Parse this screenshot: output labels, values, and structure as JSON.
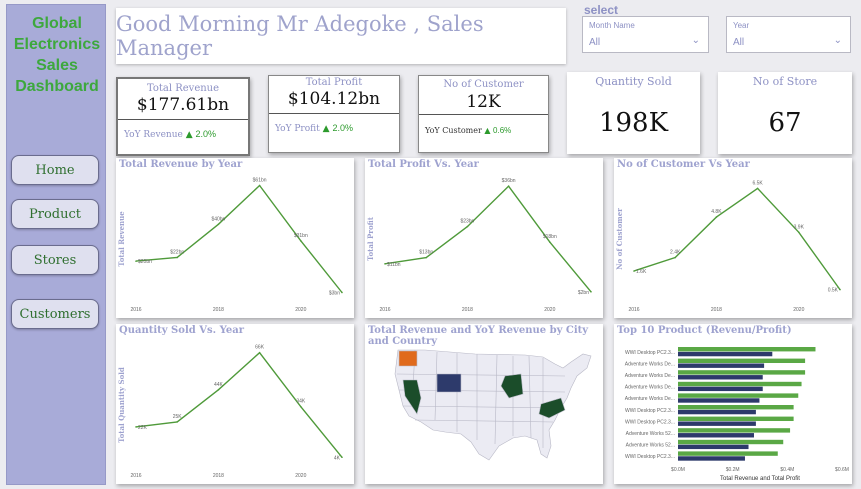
{
  "sidebar": {
    "title_lines": [
      "Global",
      "Electronics",
      "Sales",
      "Dashboard"
    ],
    "nav": [
      "Home",
      "Product",
      "Stores",
      "Customers"
    ]
  },
  "header": {
    "greeting": "Good Morning Mr Adegoke , Sales Manager"
  },
  "filters": {
    "label": "select",
    "month": {
      "label": "Month Name",
      "value": "All"
    },
    "year": {
      "label": "Year",
      "value": "All"
    }
  },
  "kpis": {
    "revenue": {
      "title": "Total Revenue",
      "value": "$177.61bn",
      "yoy_label": "YoY Revenue",
      "yoy_value": "2.0%"
    },
    "profit": {
      "title": "Total Profit",
      "value": "$104.12bn",
      "yoy_label": "YoY Profit",
      "yoy_value": "2.0%"
    },
    "customers": {
      "title": "No of Customer",
      "value": "12K",
      "yoy_label": "YoY Customer",
      "yoy_value": "0.6%"
    },
    "quantity": {
      "title": "Quantity Sold",
      "value": "198K"
    },
    "stores": {
      "title": "No of Store",
      "value": "67"
    }
  },
  "colors": {
    "line": "#4f9a3a",
    "accent_green": "#3da83d",
    "title_lavender": "#9ea2cf",
    "bar_dark": "#2d3a6b",
    "bar_green": "#5aa845",
    "map_highlight_orange": "#e06a1c",
    "map_highlight_navy": "#2d3a6b",
    "map_highlight_green": "#1b4d2a"
  },
  "chart_data": [
    {
      "id": "revenue",
      "type": "line",
      "title": "Total Revenue by Year",
      "ylabel": "Total Revenue",
      "x": [
        2016,
        2017,
        2018,
        2019,
        2020,
        2021
      ],
      "xticks": [
        "2016",
        "2018",
        "2020"
      ],
      "y": [
        20,
        22,
        40,
        61,
        31,
        3
      ],
      "labels": [
        "$20bn",
        "$22bn",
        "$40bn",
        "$61bn",
        "$31bn",
        "$3bn"
      ],
      "ylim": [
        0,
        64
      ]
    },
    {
      "id": "profit",
      "type": "line",
      "title": "Total Profit Vs. Year",
      "ylabel": "Total Profit",
      "x": [
        2016,
        2017,
        2018,
        2019,
        2020,
        2021
      ],
      "xticks": [
        "2016",
        "2018",
        "2020"
      ],
      "y": [
        11,
        13,
        23,
        36,
        18,
        2
      ],
      "labels": [
        "$11bn",
        "$13bn",
        "$23bn",
        "$36bn",
        "$18bn",
        "$2bn"
      ],
      "ylim": [
        0,
        38
      ]
    },
    {
      "id": "customers",
      "type": "line",
      "title": "No of Customer Vs Year",
      "ylabel": "No of Customer",
      "x": [
        2016,
        2017,
        2018,
        2019,
        2020,
        2021
      ],
      "xticks": [
        "2016",
        "2018",
        "2020"
      ],
      "y": [
        1.6,
        2.4,
        4.8,
        6.5,
        3.9,
        0.5
      ],
      "labels": [
        "1.6K",
        "2.4K",
        "4.8K",
        "6.5K",
        "3.9K",
        "0.5K"
      ],
      "ylim": [
        0,
        7
      ]
    },
    {
      "id": "quantity",
      "type": "line",
      "title": "Quantity Sold Vs. Year",
      "ylabel": "Total Quantity Sold",
      "x": [
        2016,
        2017,
        2018,
        2019,
        2020,
        2021
      ],
      "xticks": [
        "2016",
        "2018",
        "2020"
      ],
      "y": [
        22,
        25,
        44,
        66,
        34,
        4
      ],
      "labels": [
        "22K",
        "25K",
        "44K",
        "66K",
        "34K",
        "4K"
      ],
      "ylim": [
        0,
        70
      ]
    },
    {
      "id": "map",
      "type": "map",
      "title": "Total Revenue and YoY Revenue by City and Country",
      "highlighted_regions": [
        {
          "name": "Washington",
          "color": "orange"
        },
        {
          "name": "Wyoming",
          "color": "navy"
        },
        {
          "name": "Nevada",
          "color": "dark-green"
        },
        {
          "name": "Missouri",
          "color": "dark-green"
        },
        {
          "name": "Virginia",
          "color": "dark-green"
        }
      ]
    },
    {
      "id": "top10",
      "type": "bar",
      "orientation": "horizontal",
      "title": "Top 10 Product (Revenu/Profit)",
      "xlabel": "Total Revenue and Total Profit",
      "xticks": [
        "$0.0M",
        "$0.2M",
        "$0.4M",
        "$0.6M"
      ],
      "xlim": [
        0,
        0.6
      ],
      "categories": [
        "WWI Desktop PC2.3...",
        "Adventure Works De...",
        "Adventure Works De...",
        "Adventure Works De...",
        "Adventure Works De...",
        "WWI Desktop PC2.3...",
        "WWI Desktop PC2.3...",
        "Adventure Works 52...",
        "Adventure Works 52...",
        "WWI Desktop PC2.3..."
      ],
      "series": [
        {
          "name": "Total Revenue",
          "color": "#5aa845",
          "values": [
            0.503,
            0.465,
            0.465,
            0.452,
            0.44,
            0.423,
            0.423,
            0.41,
            0.385,
            0.365
          ]
        },
        {
          "name": "Total Profit",
          "color": "#2d3a6b",
          "values": [
            0.345,
            0.315,
            0.31,
            0.31,
            0.298,
            0.285,
            0.285,
            0.278,
            0.258,
            0.245
          ]
        }
      ]
    }
  ]
}
